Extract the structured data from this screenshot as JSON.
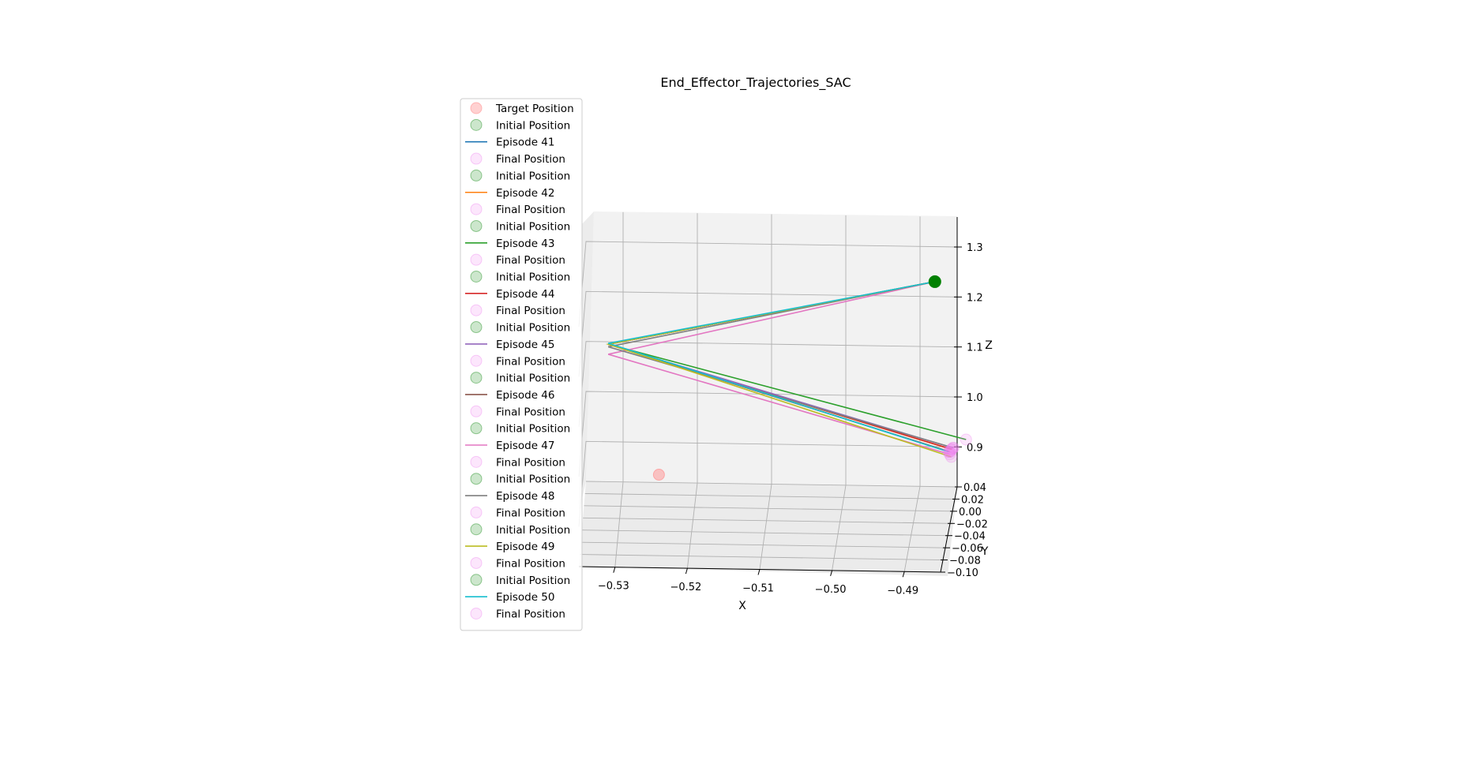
{
  "chart_data": {
    "type": "line",
    "projection": "3d",
    "title": "End_Effector_Trajectories_SAC",
    "xlabel": "X",
    "ylabel": "Y",
    "zlabel": "Z",
    "xlim": [
      -0.535,
      -0.485
    ],
    "ylim": [
      -0.1,
      0.04
    ],
    "zlim": [
      0.82,
      1.36
    ],
    "x_ticks": [
      {
        "v": -0.53,
        "label": "−0.53"
      },
      {
        "v": -0.52,
        "label": "−0.52"
      },
      {
        "v": -0.51,
        "label": "−0.51"
      },
      {
        "v": -0.5,
        "label": "−0.50"
      },
      {
        "v": -0.49,
        "label": "−0.49"
      }
    ],
    "y_ticks": [
      {
        "v": 0.04,
        "label": "0.04"
      },
      {
        "v": 0.02,
        "label": "0.02"
      },
      {
        "v": 0.0,
        "label": "0.00"
      },
      {
        "v": -0.02,
        "label": "−0.02"
      },
      {
        "v": -0.04,
        "label": "−0.04"
      },
      {
        "v": -0.06,
        "label": "−0.06"
      },
      {
        "v": -0.08,
        "label": "−0.08"
      },
      {
        "v": -0.1,
        "label": "−0.10"
      }
    ],
    "z_ticks": [
      {
        "v": 0.9,
        "label": "0.9"
      },
      {
        "v": 1.0,
        "label": "1.0"
      },
      {
        "v": 1.1,
        "label": "1.1"
      },
      {
        "v": 1.2,
        "label": "1.2"
      },
      {
        "v": 1.3,
        "label": "1.3"
      }
    ],
    "grid": true,
    "legend_position": "upper-left",
    "legend": [
      "Target Position",
      "Initial Position",
      "Episode 41",
      "Final Position",
      "Initial Position",
      "Episode 42",
      "Final Position",
      "Initial Position",
      "Episode 43",
      "Final Position",
      "Initial Position",
      "Episode 44",
      "Final Position",
      "Initial Position",
      "Episode 45",
      "Final Position",
      "Initial Position",
      "Episode 46",
      "Final Position",
      "Initial Position",
      "Episode 47",
      "Final Position",
      "Initial Position",
      "Episode 48",
      "Final Position",
      "Initial Position",
      "Episode 49",
      "Final Position",
      "Initial Position",
      "Episode 50",
      "Final Position"
    ],
    "target_position": {
      "x": -0.525,
      "y": 0.02,
      "z": 0.86,
      "color": "#ff9999"
    },
    "initial_position": {
      "x": -0.488,
      "y": 0.04,
      "z": 1.23,
      "color": "#008000"
    },
    "final_marker_color": "#ee82ee",
    "series": [
      {
        "name": "Episode 41",
        "color": "#1f77b4",
        "points": [
          [
            -0.488,
            0.04,
            1.23
          ],
          [
            -0.532,
            0.04,
            1.095
          ],
          [
            -0.486,
            0.04,
            0.89
          ]
        ]
      },
      {
        "name": "Episode 42",
        "color": "#ff7f0e",
        "points": [
          [
            -0.488,
            0.04,
            1.23
          ],
          [
            -0.532,
            0.04,
            1.095
          ],
          [
            -0.4858,
            0.04,
            0.895
          ]
        ]
      },
      {
        "name": "Episode 43",
        "color": "#2ca02c",
        "points": [
          [
            -0.488,
            0.04,
            1.23
          ],
          [
            -0.532,
            0.04,
            1.095
          ],
          [
            -0.4838,
            0.04,
            0.915
          ]
        ]
      },
      {
        "name": "Episode 44",
        "color": "#d62728",
        "points": [
          [
            -0.488,
            0.04,
            1.23
          ],
          [
            -0.532,
            0.04,
            1.095
          ],
          [
            -0.4857,
            0.04,
            0.895
          ]
        ]
      },
      {
        "name": "Episode 45",
        "color": "#9467bd",
        "points": [
          [
            -0.488,
            0.04,
            1.23
          ],
          [
            -0.532,
            0.04,
            1.095
          ],
          [
            -0.4856,
            0.04,
            0.898
          ]
        ]
      },
      {
        "name": "Episode 46",
        "color": "#8c564b",
        "points": [
          [
            -0.488,
            0.04,
            1.23
          ],
          [
            -0.532,
            0.04,
            1.095
          ],
          [
            -0.486,
            0.04,
            0.89
          ]
        ]
      },
      {
        "name": "Episode 47",
        "color": "#e377c2",
        "points": [
          [
            -0.488,
            0.04,
            1.23
          ],
          [
            -0.532,
            0.04,
            1.075
          ],
          [
            -0.486,
            0.04,
            0.885
          ]
        ]
      },
      {
        "name": "Episode 48",
        "color": "#7f7f7f",
        "points": [
          [
            -0.488,
            0.04,
            1.23
          ],
          [
            -0.532,
            0.04,
            1.09
          ],
          [
            -0.4855,
            0.04,
            0.898
          ]
        ]
      },
      {
        "name": "Episode 49",
        "color": "#bcbd22",
        "points": [
          [
            -0.488,
            0.04,
            1.23
          ],
          [
            -0.532,
            0.04,
            1.095
          ],
          [
            -0.4858,
            0.04,
            0.88
          ]
        ]
      },
      {
        "name": "Episode 50",
        "color": "#17becf",
        "points": [
          [
            -0.488,
            0.04,
            1.23
          ],
          [
            -0.532,
            0.04,
            1.097
          ],
          [
            -0.4862,
            0.04,
            0.89
          ]
        ]
      }
    ]
  }
}
